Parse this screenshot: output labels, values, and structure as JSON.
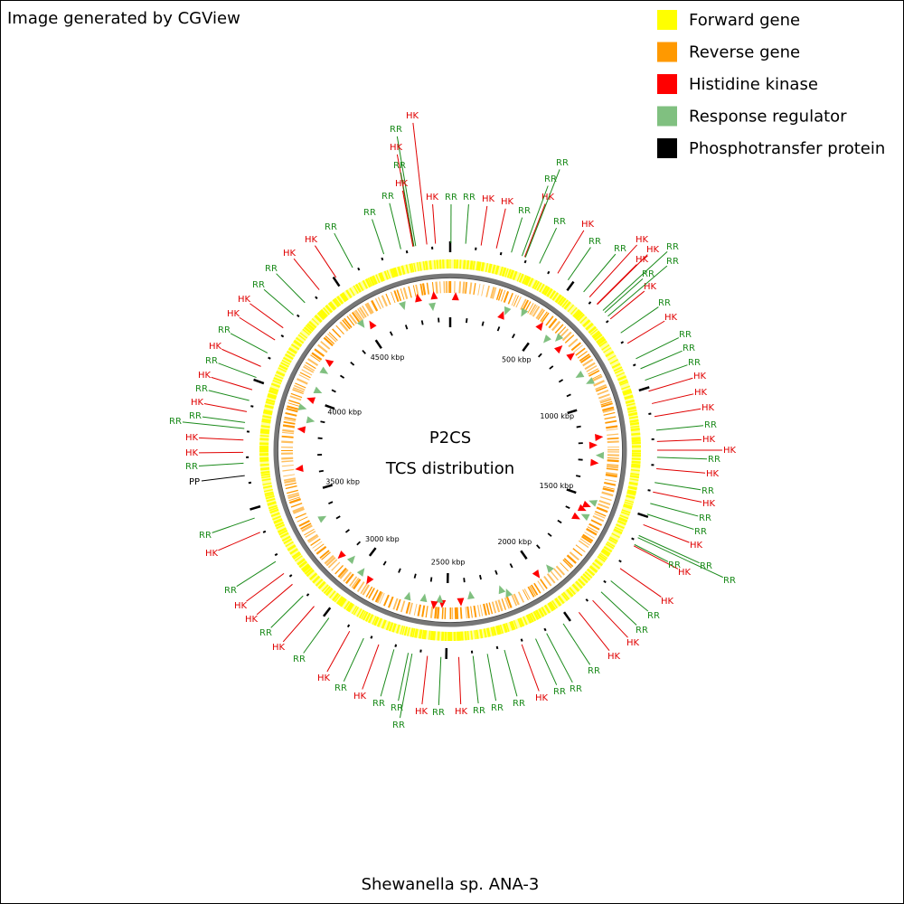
{
  "header": {
    "credit": "Image generated by CGView"
  },
  "map": {
    "title": "P2CS",
    "subtitle": "TCS distribution",
    "organism": "Shewanella sp. ANA-3",
    "scale_labels": [
      "500 kbp",
      "1000 kbp",
      "1500 kbp",
      "2000 kbp",
      "2500 kbp",
      "3000 kbp",
      "3500 kbp",
      "4000 kbp",
      "4500 kbp"
    ],
    "label_colors": {
      "HK": "#e00000",
      "RR": "#1a8a1a",
      "PP": "#000000"
    },
    "feature_labels": [
      "HK",
      "RR",
      "HK",
      "RR",
      "HK",
      "RR",
      "RR",
      "RR",
      "HK",
      "HK",
      "RR",
      "RR",
      "HK",
      "HK",
      "RR",
      "HK",
      "RR",
      "HK",
      "RR",
      "HK",
      "RR",
      "RR",
      "HK",
      "HK",
      "RR",
      "PP",
      "RR",
      "HK",
      "RR",
      "HK",
      "HK",
      "RR",
      "HK",
      "RR",
      "HK",
      "RR",
      "HK",
      "RR",
      "RR",
      "RR",
      "HK",
      "RR",
      "HK",
      "RR",
      "RR",
      "RR",
      "HK",
      "RR",
      "RR",
      "RR",
      "HK",
      "HK",
      "RR",
      "RR",
      "HK",
      "HK",
      "RR",
      "RR",
      "RR",
      "HK",
      "RR",
      "RR",
      "HK",
      "RR",
      "HK",
      "RR",
      "HK",
      "HK",
      "RR",
      "HK",
      "HK",
      "HK",
      "RR",
      "RR",
      "RR",
      "HK",
      "RR",
      "HK",
      "RR",
      "HK",
      "HK",
      "RR",
      "RR",
      "HK",
      "RR",
      "RR",
      "HK",
      "RR",
      "HK",
      "RR",
      "RR",
      "RR",
      "HK",
      "HK",
      "RR",
      "RR",
      "HK"
    ]
  },
  "legend": {
    "items": [
      {
        "label": "Forward gene",
        "color": "#ffff00"
      },
      {
        "label": "Reverse gene",
        "color": "#ff9900"
      },
      {
        "label": "Histidine kinase",
        "color": "#ff0000"
      },
      {
        "label": "Response regulator",
        "color": "#80c080"
      },
      {
        "label": "Phosphotransfer protein",
        "color": "#000000"
      }
    ]
  }
}
